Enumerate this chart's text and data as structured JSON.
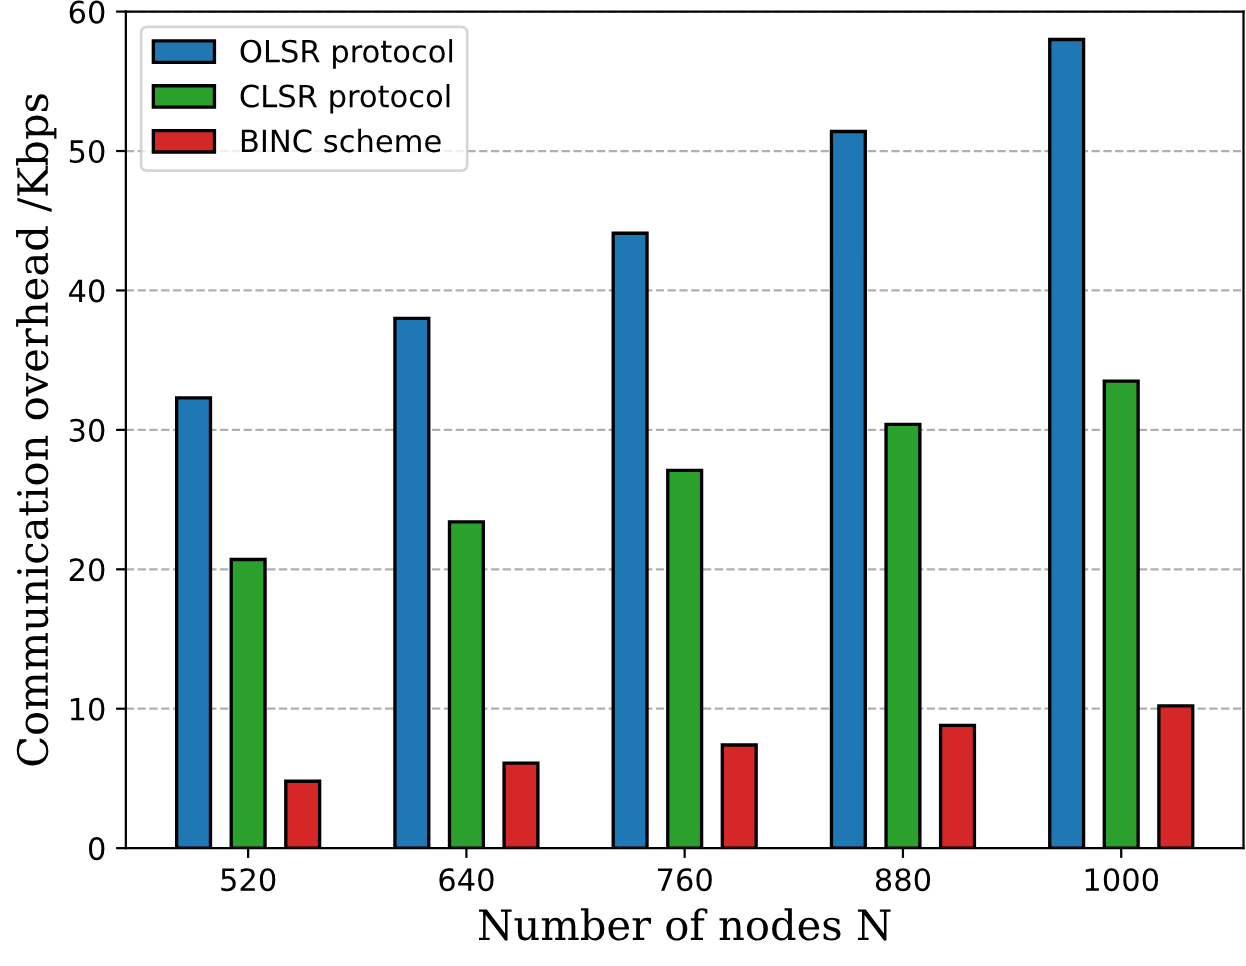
{
  "chart_data": {
    "type": "bar",
    "xlabel": "Number of nodes N",
    "ylabel": "Communication overhead /Kbps",
    "categories": [
      "520",
      "640",
      "760",
      "880",
      "1000"
    ],
    "series": [
      {
        "name": "OLSR protocol",
        "color": "#1f77b4",
        "values": [
          32.3,
          38.0,
          44.1,
          51.4,
          58.0
        ]
      },
      {
        "name": "CLSR protocol",
        "color": "#2ca02c",
        "values": [
          20.7,
          23.4,
          27.1,
          30.4,
          33.5
        ]
      },
      {
        "name": "BINC scheme",
        "color": "#d62728",
        "values": [
          4.8,
          6.1,
          7.4,
          8.8,
          10.2
        ]
      }
    ],
    "ylim": [
      0,
      60
    ],
    "yticks": [
      0,
      10,
      20,
      30,
      40,
      50,
      60
    ],
    "grid": "y",
    "legend": "top left"
  }
}
